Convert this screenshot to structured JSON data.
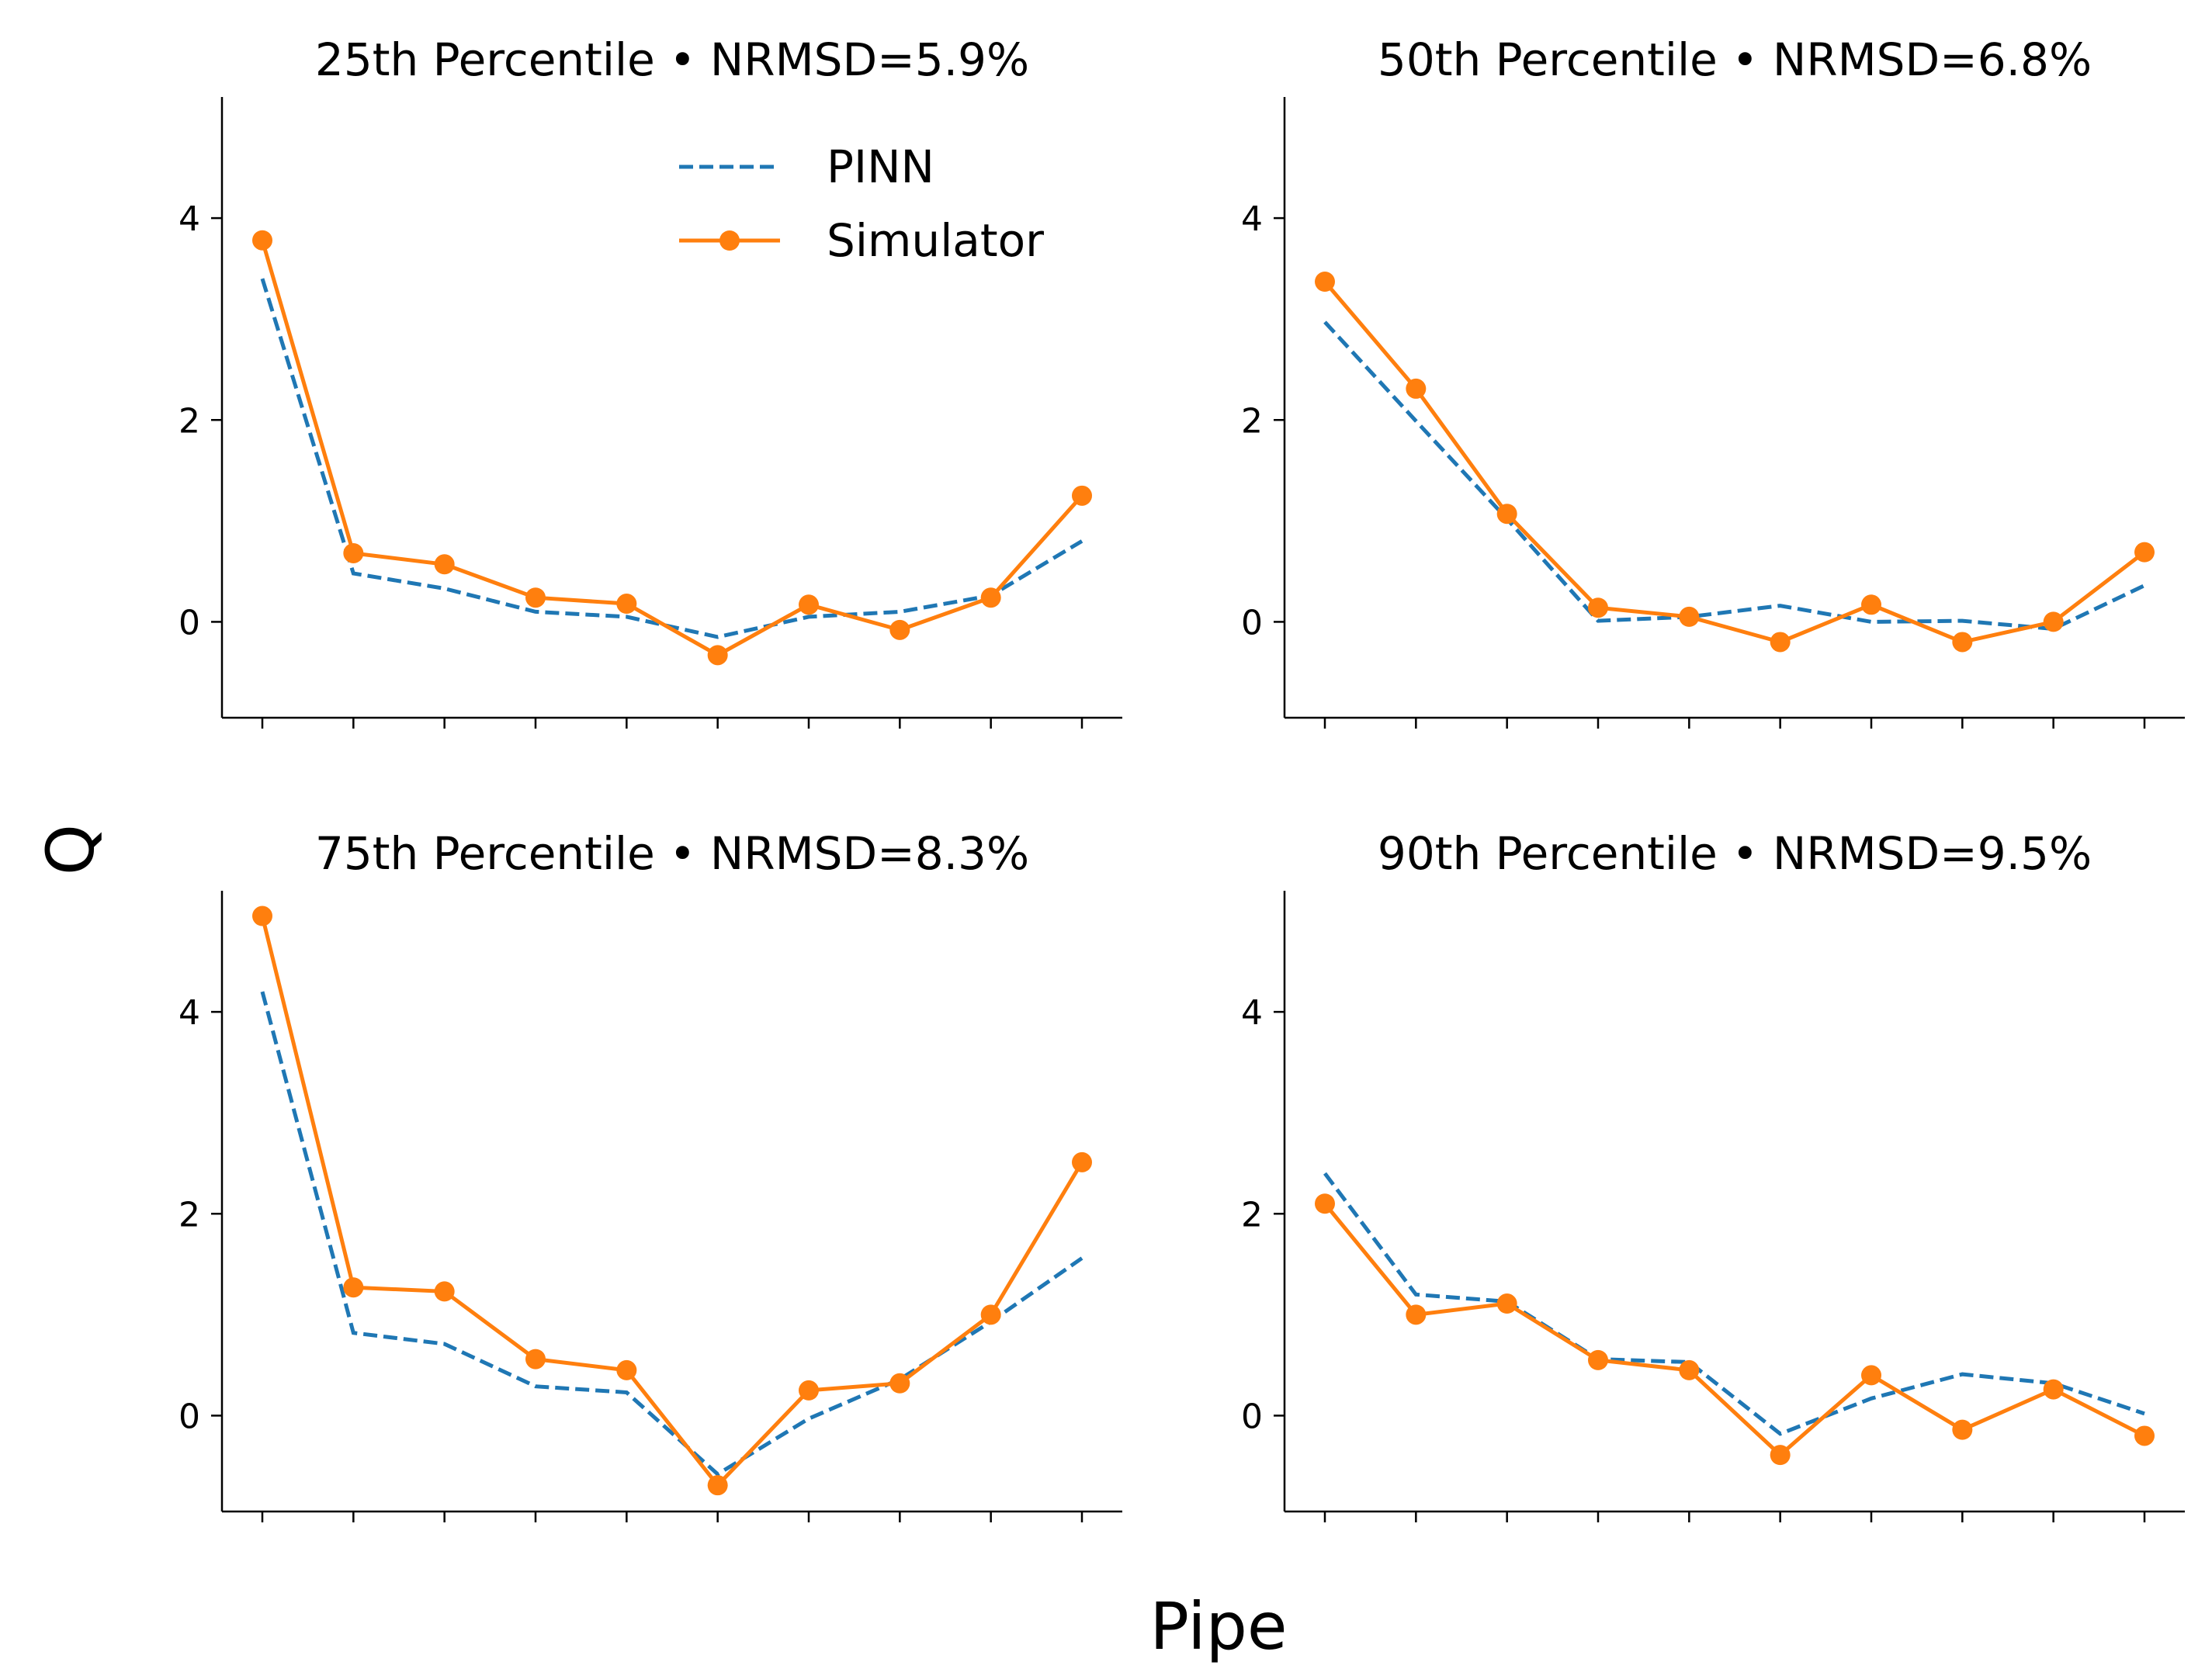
{
  "figure": {
    "xlabel": "Pipe",
    "ylabel": "Q"
  },
  "legend": {
    "entries": [
      {
        "label": "PINN",
        "color": "#1f77b4",
        "style": "dashed"
      },
      {
        "label": "Simulator",
        "color": "#ff7f0e",
        "style": "solid-markers"
      }
    ],
    "placement": "upper-right of first panel"
  },
  "chart_data": [
    {
      "type": "line",
      "title": "25th Percentile • NRMSD=5.9%",
      "x": [
        1,
        2,
        3,
        4,
        5,
        6,
        7,
        8,
        9,
        10
      ],
      "ylim": [
        -0.95,
        5.2
      ],
      "yticks": [
        0,
        2,
        4
      ],
      "series": [
        {
          "name": "PINN",
          "color": "#1f77b4",
          "values": [
            3.4,
            0.48,
            0.33,
            0.1,
            0.05,
            -0.15,
            0.05,
            0.1,
            0.26,
            0.8
          ]
        },
        {
          "name": "Simulator",
          "color": "#ff7f0e",
          "values": [
            3.78,
            0.68,
            0.57,
            0.24,
            0.18,
            -0.33,
            0.17,
            -0.08,
            0.24,
            1.25
          ]
        }
      ]
    },
    {
      "type": "line",
      "title": "50th Percentile • NRMSD=6.8%",
      "x": [
        1,
        2,
        3,
        4,
        5,
        6,
        7,
        8,
        9,
        10
      ],
      "ylim": [
        -0.95,
        5.2
      ],
      "yticks": [
        0,
        2,
        4
      ],
      "series": [
        {
          "name": "PINN",
          "color": "#1f77b4",
          "values": [
            2.97,
            1.99,
            1.02,
            0.01,
            0.05,
            0.16,
            0.0,
            0.01,
            -0.07,
            0.36
          ]
        },
        {
          "name": "Simulator",
          "color": "#ff7f0e",
          "values": [
            3.37,
            2.31,
            1.07,
            0.14,
            0.05,
            -0.2,
            0.17,
            -0.2,
            0.0,
            0.69
          ]
        }
      ]
    },
    {
      "type": "line",
      "title": "75th Percentile • NRMSD=8.3%",
      "x": [
        1,
        2,
        3,
        4,
        5,
        6,
        7,
        8,
        9,
        10
      ],
      "ylim": [
        -0.95,
        5.2
      ],
      "yticks": [
        0,
        2,
        4
      ],
      "series": [
        {
          "name": "PINN",
          "color": "#1f77b4",
          "values": [
            4.2,
            0.82,
            0.71,
            0.29,
            0.23,
            -0.58,
            -0.03,
            0.36,
            0.93,
            1.56
          ]
        },
        {
          "name": "Simulator",
          "color": "#ff7f0e",
          "values": [
            4.95,
            1.27,
            1.23,
            0.56,
            0.45,
            -0.69,
            0.25,
            0.32,
            1.0,
            2.51
          ]
        }
      ]
    },
    {
      "type": "line",
      "title": "90th Percentile • NRMSD=9.5%",
      "x": [
        1,
        2,
        3,
        4,
        5,
        6,
        7,
        8,
        9,
        10
      ],
      "ylim": [
        -0.95,
        5.2
      ],
      "yticks": [
        0,
        2,
        4
      ],
      "series": [
        {
          "name": "PINN",
          "color": "#1f77b4",
          "values": [
            2.4,
            1.2,
            1.13,
            0.56,
            0.53,
            -0.18,
            0.17,
            0.41,
            0.32,
            0.02
          ]
        },
        {
          "name": "Simulator",
          "color": "#ff7f0e",
          "values": [
            2.1,
            1.0,
            1.11,
            0.55,
            0.45,
            -0.39,
            0.4,
            -0.14,
            0.26,
            -0.2
          ]
        }
      ]
    }
  ]
}
